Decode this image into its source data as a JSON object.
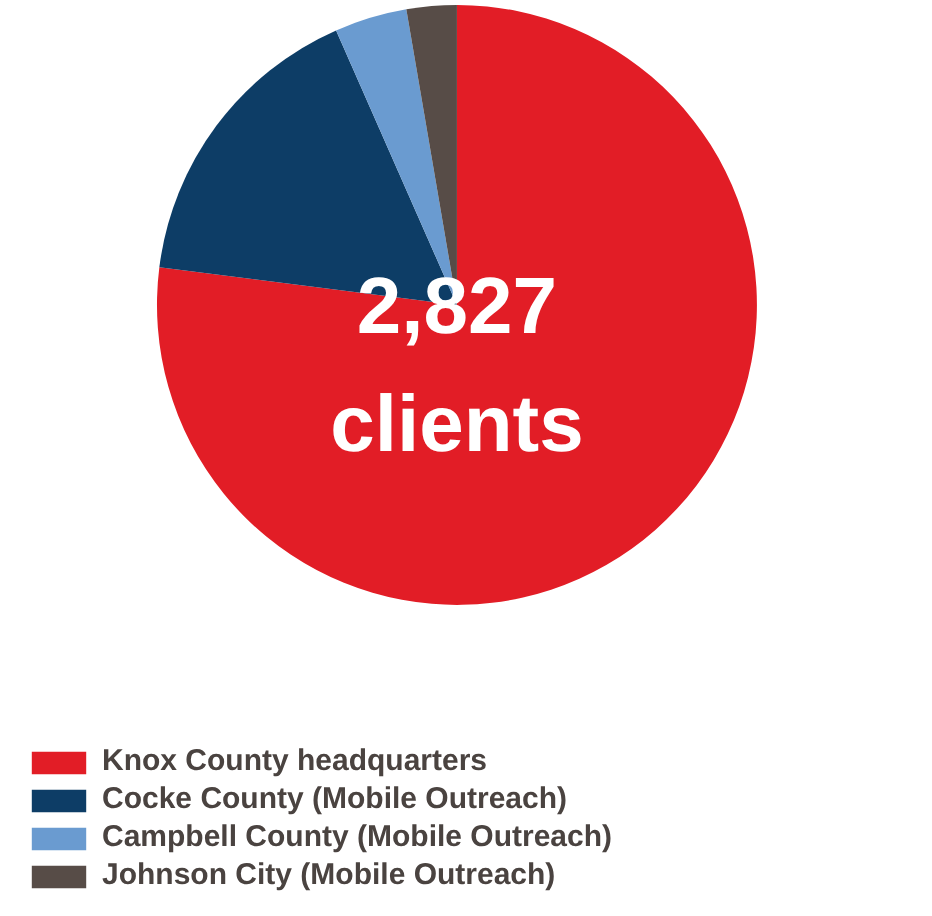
{
  "chart_data": {
    "type": "pie",
    "categories": [
      "Knox County headquarters",
      "Cocke County (Mobile Outreach)",
      "Campbell County (Mobile Outreach)",
      "Johnson City (Mobile Outreach)"
    ],
    "values": [
      77,
      16.4,
      3.9,
      2.7
    ],
    "colors": [
      "#e21d26",
      "#0d3d66",
      "#6a9bd0",
      "#574c47"
    ],
    "annotations": [
      "2,827\nclients"
    ],
    "legend": "bottom"
  }
}
